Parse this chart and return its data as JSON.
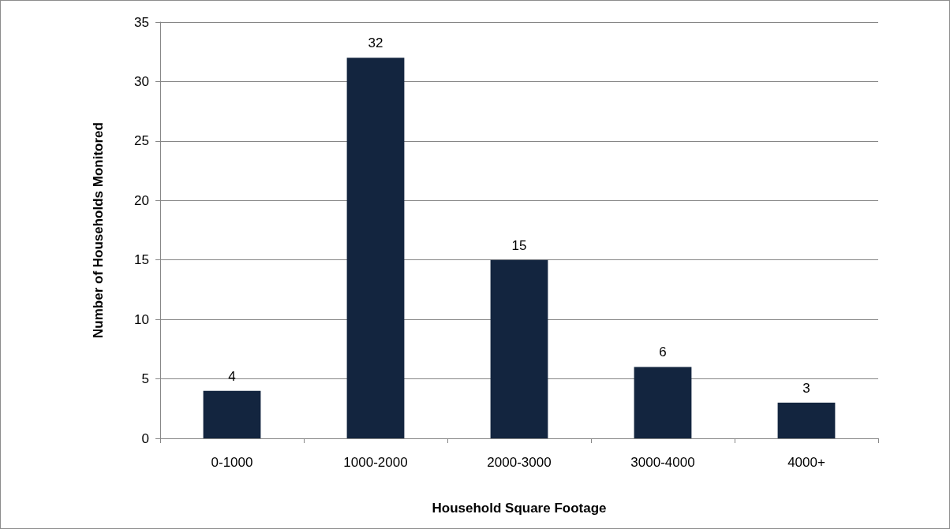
{
  "chart_data": {
    "type": "bar",
    "xlabel": "Household Square Footage",
    "ylabel": "Number of Households Monitored",
    "categories": [
      "0-1000",
      "1000-2000",
      "2000-3000",
      "3000-4000",
      "4000+"
    ],
    "values": [
      4,
      32,
      15,
      6,
      3
    ],
    "color": "#13253f",
    "ylim": [
      0,
      35
    ],
    "yticks": [
      0,
      5,
      10,
      15,
      20,
      25,
      30,
      35
    ],
    "grid": "y",
    "data_labels": true
  }
}
